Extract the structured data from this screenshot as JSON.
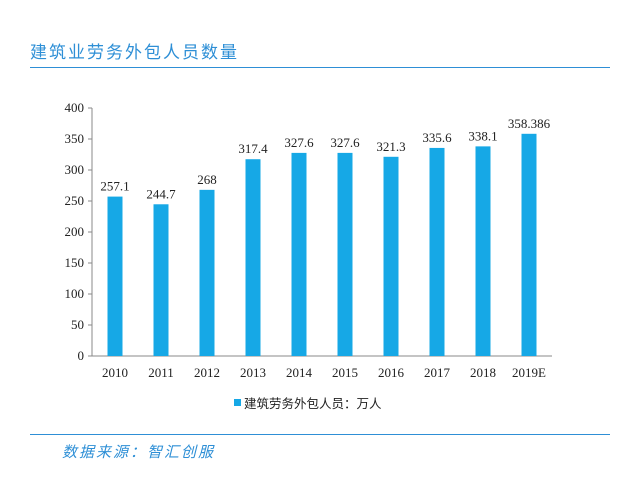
{
  "page": {
    "title": "建筑业劳务外包人员数量",
    "source": "数据来源：智汇创服"
  },
  "colors": {
    "bar": "#16a8e6",
    "accent": "#2e8fd6",
    "axis": "#888888"
  },
  "chart_data": {
    "type": "bar",
    "categories": [
      "2010",
      "2011",
      "2012",
      "2013",
      "2014",
      "2015",
      "2016",
      "2017",
      "2018",
      "2019E"
    ],
    "series": [
      {
        "name": "建筑劳务外包人员：万人",
        "values": [
          257.1,
          244.7,
          268,
          317.4,
          327.6,
          327.6,
          321.3,
          335.6,
          338.1,
          358.386
        ],
        "labels": [
          "257.1",
          "244.7",
          "268",
          "317.4",
          "327.6",
          "327.6",
          "321.3",
          "335.6",
          "338.1",
          "358.386"
        ]
      }
    ],
    "ylim": [
      0,
      400
    ],
    "yticks": [
      0,
      50,
      100,
      150,
      200,
      250,
      300,
      350,
      400
    ],
    "legend": "bottom",
    "grid": false
  }
}
